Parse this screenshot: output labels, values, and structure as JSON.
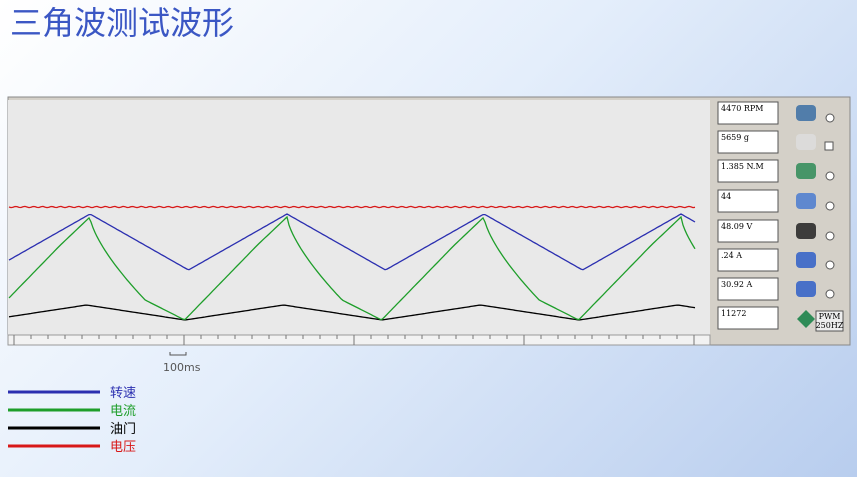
{
  "header": {
    "title": "三角波测试波形"
  },
  "readouts": [
    "4470 RPM",
    "5659 g",
    "1.385 N.M",
    "44",
    "48.09 V",
    ".24 A",
    "30.92 A",
    "11272"
  ],
  "button": {
    "line1": "PWM",
    "line2": "250HZ"
  },
  "scale_label": "100ms",
  "legend": [
    {
      "name": "转速",
      "color": "#2b2fb0"
    },
    {
      "name": "电流",
      "color": "#1e9e2a"
    },
    {
      "name": "油门",
      "color": "#000000"
    },
    {
      "name": "电压",
      "color": "#d81818"
    }
  ]
}
